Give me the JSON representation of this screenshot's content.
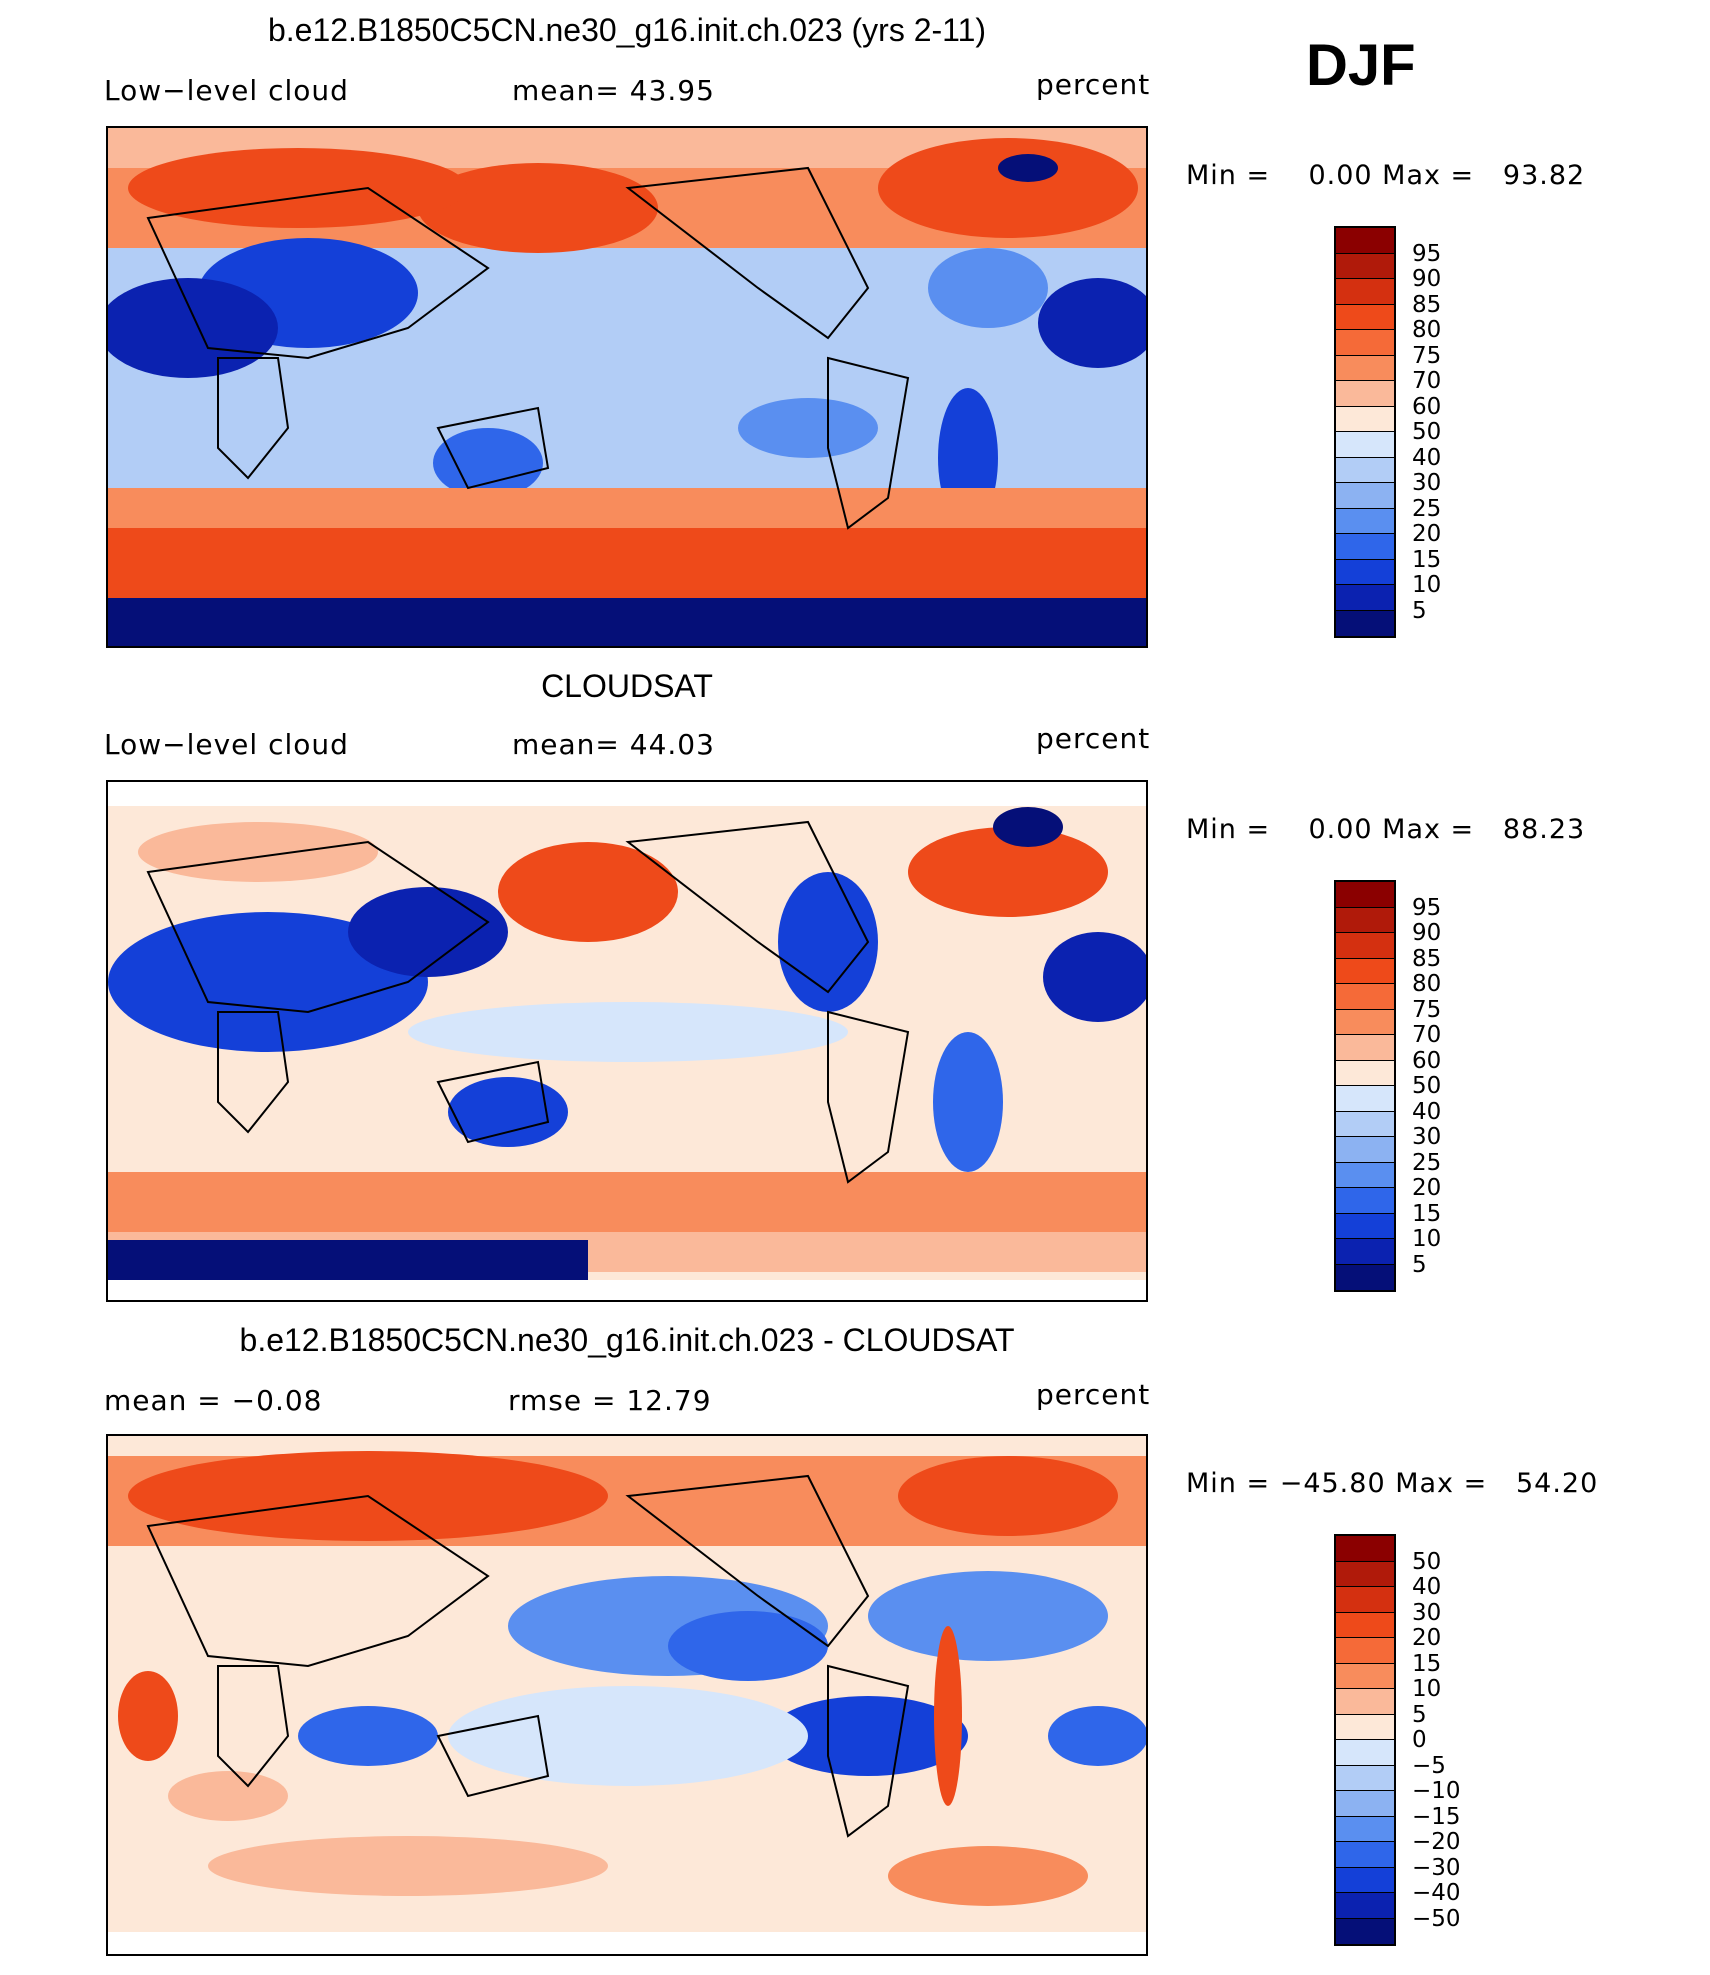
{
  "header": {
    "season": "DJF"
  },
  "panels": [
    {
      "title": "b.e12.B1850C5CN.ne30_g16.init.ch.023 (yrs 2-11)",
      "left_label": "Low−level cloud",
      "mid_label": "mean=   43.95",
      "right_label": "percent",
      "minmax": "Min =    0.00 Max =   93.82",
      "kind": "abs"
    },
    {
      "title": "CLOUDSAT",
      "left_label": "Low−level cloud",
      "mid_label": "mean=   44.03",
      "right_label": "percent",
      "minmax": "Min =    0.00 Max =   88.23",
      "kind": "abs"
    },
    {
      "title": "b.e12.B1850C5CN.ne30_g16.init.ch.023 - CLOUDSAT",
      "left_label": "mean =   −0.08",
      "mid_label": "rmse =   12.79",
      "right_label": "percent",
      "minmax": "Min = −45.80 Max =   54.20",
      "kind": "diff"
    }
  ],
  "colorbars": {
    "abs": {
      "labels": [
        "95",
        "90",
        "85",
        "80",
        "75",
        "70",
        "60",
        "50",
        "40",
        "30",
        "25",
        "20",
        "15",
        "10",
        "5"
      ],
      "colors": [
        "#8b0000",
        "#b01a0a",
        "#d43010",
        "#ee4a1a",
        "#f56a38",
        "#f88c5c",
        "#fab99a",
        "#fde8d8",
        "#d6e6fb",
        "#b2cdf6",
        "#8cb2f2",
        "#5a8ff0",
        "#2f66ea",
        "#1440d8",
        "#0b22b0",
        "#050f78"
      ]
    },
    "diff": {
      "labels": [
        "50",
        "40",
        "30",
        "20",
        "15",
        "10",
        "5",
        "0",
        "−5",
        "−10",
        "−15",
        "−20",
        "−30",
        "−40",
        "−50"
      ],
      "colors": [
        "#8b0000",
        "#b01a0a",
        "#d43010",
        "#ee4a1a",
        "#f56a38",
        "#f88c5c",
        "#fab99a",
        "#fde8d8",
        "#d6e6fb",
        "#b2cdf6",
        "#8cb2f2",
        "#5a8ff0",
        "#2f66ea",
        "#1440d8",
        "#0b22b0",
        "#050f78"
      ]
    }
  }
}
